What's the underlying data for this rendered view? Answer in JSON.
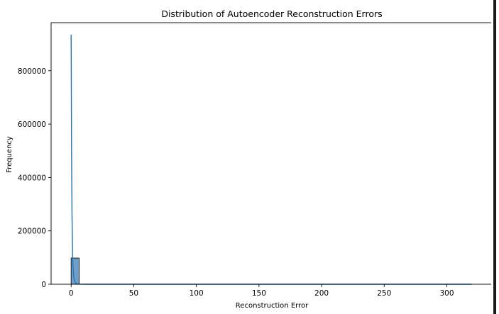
{
  "chart_data": {
    "type": "bar",
    "title": "Distribution of Autoencoder Reconstruction Errors",
    "xlabel": "Reconstruction Error",
    "ylabel": "Frequency",
    "xlim": [
      -16,
      336
    ],
    "ylim": [
      0,
      980000
    ],
    "xticks": [
      0,
      50,
      100,
      150,
      200,
      250,
      300
    ],
    "yticks": [
      0,
      200000,
      400000,
      600000,
      800000
    ],
    "grid": false,
    "bins": [
      {
        "x0": 0.0,
        "x1": 6.4,
        "count": 98000
      }
    ],
    "kde": {
      "x": [
        0,
        0.3,
        0.7,
        1.2,
        2,
        3,
        4,
        5,
        6,
        8,
        12,
        20,
        40,
        80,
        150,
        250,
        320
      ],
      "y": [
        935000,
        520000,
        260000,
        95000,
        30000,
        9000,
        3000,
        1200,
        500,
        150,
        20,
        0,
        0,
        0,
        0,
        0,
        0
      ]
    },
    "colors": {
      "bar_fill": "#6f9fcb",
      "bar_edge": "#1a1a1a",
      "kde_line": "#1f77b4",
      "axis": "#000000"
    }
  }
}
